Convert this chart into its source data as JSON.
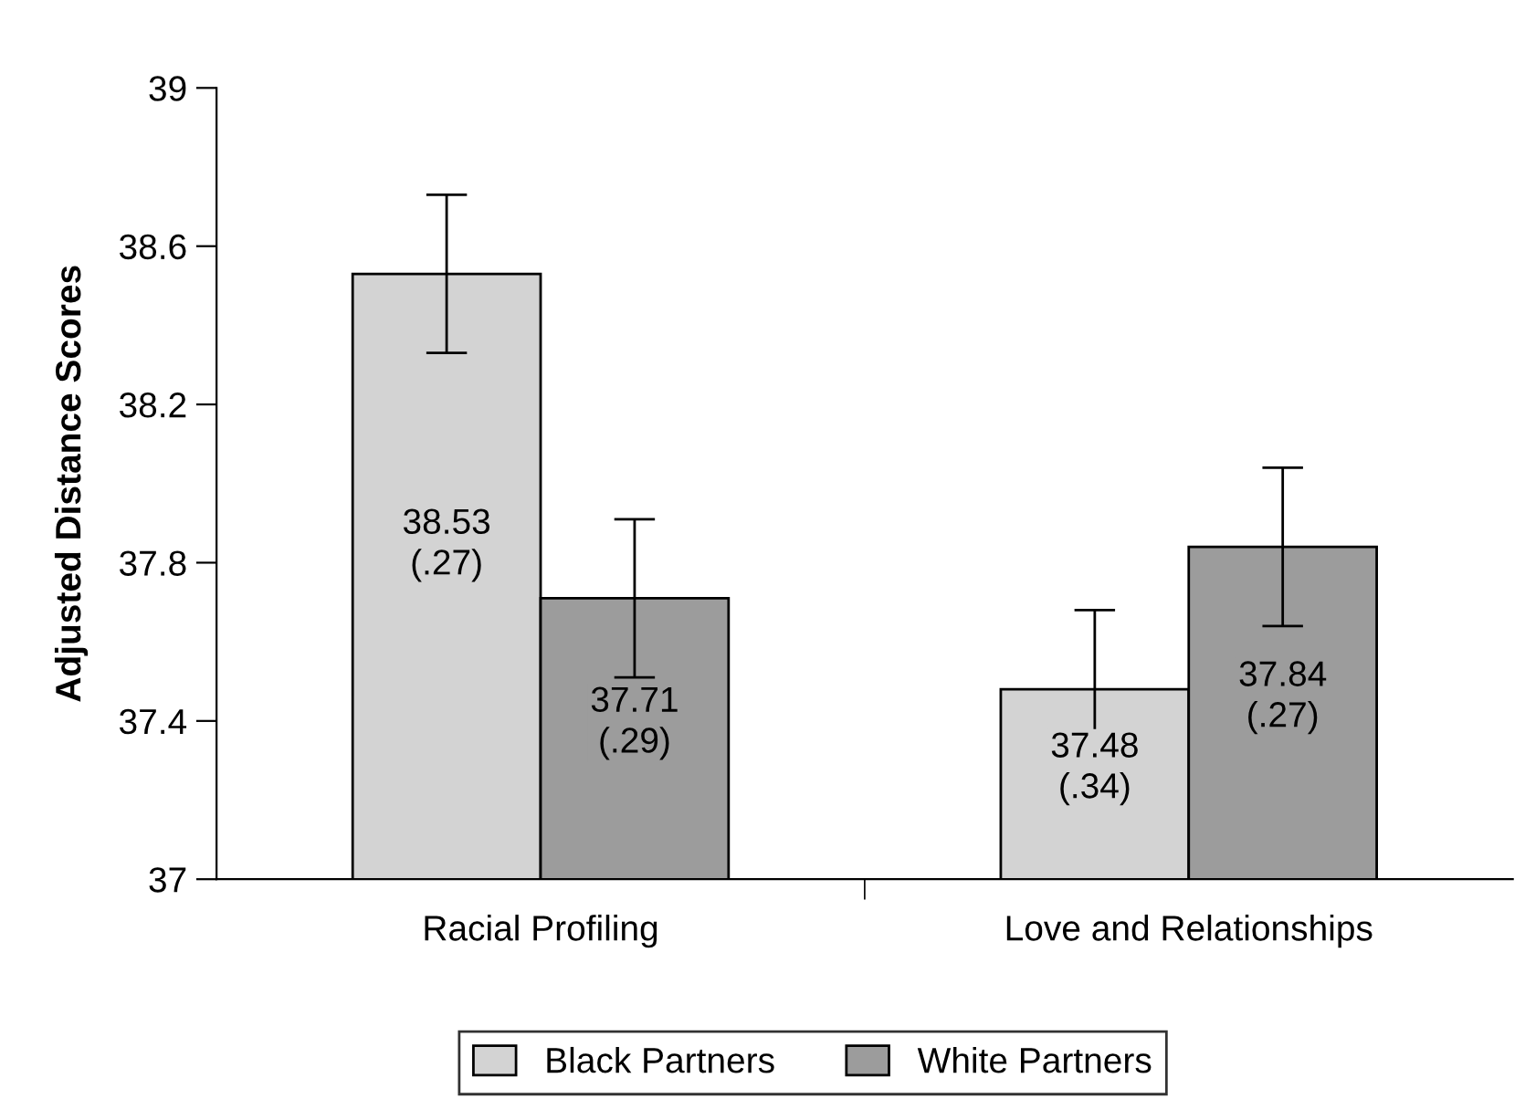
{
  "chart_data": {
    "type": "bar",
    "ylabel": "Adjusted Distance Scores",
    "categories": [
      "Racial Profiling",
      "Love and Relationships"
    ],
    "series": [
      {
        "name": "Black Partners",
        "color": "#d3d3d3",
        "values": [
          38.53,
          37.48
        ],
        "errors": [
          0.2,
          0.2
        ],
        "value_labels": [
          "38.53\n(.27)",
          "37.48\n(.34)"
        ]
      },
      {
        "name": "White Partners",
        "color": "#9c9c9c",
        "values": [
          37.71,
          37.84
        ],
        "errors": [
          0.2,
          0.2
        ],
        "value_labels": [
          "37.71\n(.29)",
          "37.84\n(.27)"
        ]
      }
    ],
    "ylim": [
      37,
      39
    ],
    "yticks": [
      37,
      37.4,
      37.8,
      38.2,
      38.6,
      39
    ],
    "grid": false,
    "legend": "bottom"
  }
}
